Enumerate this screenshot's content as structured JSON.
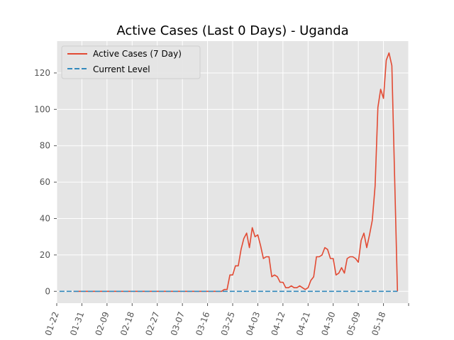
{
  "chart_data": {
    "type": "line",
    "title": "Active Cases (Last 0 Days) - Uganda",
    "xlabel": "",
    "ylabel": "",
    "x_range": [
      "2020-01-22",
      "2020-05-27"
    ],
    "ylim": [
      -6.5,
      137.5
    ],
    "yticks": [
      0,
      20,
      40,
      60,
      80,
      100,
      120
    ],
    "xticks": [
      {
        "date": "2020-01-22",
        "label": "01-22"
      },
      {
        "date": "2020-01-31",
        "label": "01-31"
      },
      {
        "date": "2020-02-09",
        "label": "02-09"
      },
      {
        "date": "2020-02-18",
        "label": "02-18"
      },
      {
        "date": "2020-02-27",
        "label": "02-27"
      },
      {
        "date": "2020-03-07",
        "label": "03-07"
      },
      {
        "date": "2020-03-16",
        "label": "03-16"
      },
      {
        "date": "2020-03-25",
        "label": "03-25"
      },
      {
        "date": "2020-04-03",
        "label": "04-03"
      },
      {
        "date": "2020-04-12",
        "label": "04-12"
      },
      {
        "date": "2020-04-21",
        "label": "04-21"
      },
      {
        "date": "2020-04-30",
        "label": "04-30"
      },
      {
        "date": "2020-05-09",
        "label": "05-09"
      },
      {
        "date": "2020-05-18",
        "label": "05-18"
      },
      {
        "date": "2020-05-27",
        "label": ""
      }
    ],
    "grid": true,
    "legend_position": "top-left",
    "colors": {
      "background": "#e5e5e5",
      "grid": "#ffffff",
      "text": "#555555"
    },
    "series": [
      {
        "name": "Active Cases (7 Day)",
        "color": "#e24a33",
        "style": "solid",
        "points": [
          [
            "2020-01-28",
            0
          ],
          [
            "2020-02-05",
            0
          ],
          [
            "2020-02-15",
            0
          ],
          [
            "2020-02-25",
            0
          ],
          [
            "2020-03-05",
            0
          ],
          [
            "2020-03-15",
            0
          ],
          [
            "2020-03-21",
            0
          ],
          [
            "2020-03-22",
            1
          ],
          [
            "2020-03-23",
            1
          ],
          [
            "2020-03-24",
            9
          ],
          [
            "2020-03-25",
            9
          ],
          [
            "2020-03-26",
            14
          ],
          [
            "2020-03-27",
            14
          ],
          [
            "2020-03-28",
            23
          ],
          [
            "2020-03-29",
            29
          ],
          [
            "2020-03-30",
            32
          ],
          [
            "2020-03-31",
            24
          ],
          [
            "2020-04-01",
            35
          ],
          [
            "2020-04-02",
            30
          ],
          [
            "2020-04-03",
            31
          ],
          [
            "2020-04-04",
            25
          ],
          [
            "2020-04-05",
            18
          ],
          [
            "2020-04-06",
            19
          ],
          [
            "2020-04-07",
            19
          ],
          [
            "2020-04-08",
            8
          ],
          [
            "2020-04-09",
            9
          ],
          [
            "2020-04-10",
            8
          ],
          [
            "2020-04-11",
            5
          ],
          [
            "2020-04-12",
            5
          ],
          [
            "2020-04-13",
            2
          ],
          [
            "2020-04-14",
            2
          ],
          [
            "2020-04-15",
            3
          ],
          [
            "2020-04-16",
            2
          ],
          [
            "2020-04-17",
            2
          ],
          [
            "2020-04-18",
            3
          ],
          [
            "2020-04-19",
            2
          ],
          [
            "2020-04-20",
            1
          ],
          [
            "2020-04-21",
            2
          ],
          [
            "2020-04-22",
            6
          ],
          [
            "2020-04-23",
            8
          ],
          [
            "2020-04-24",
            19
          ],
          [
            "2020-04-25",
            19
          ],
          [
            "2020-04-26",
            20
          ],
          [
            "2020-04-27",
            24
          ],
          [
            "2020-04-28",
            23
          ],
          [
            "2020-04-29",
            18
          ],
          [
            "2020-04-30",
            18
          ],
          [
            "2020-05-01",
            9
          ],
          [
            "2020-05-02",
            10
          ],
          [
            "2020-05-03",
            13
          ],
          [
            "2020-05-04",
            10
          ],
          [
            "2020-05-05",
            18
          ],
          [
            "2020-05-06",
            19
          ],
          [
            "2020-05-07",
            19
          ],
          [
            "2020-05-08",
            18
          ],
          [
            "2020-05-09",
            16
          ],
          [
            "2020-05-10",
            28
          ],
          [
            "2020-05-11",
            32
          ],
          [
            "2020-05-12",
            24
          ],
          [
            "2020-05-13",
            31
          ],
          [
            "2020-05-14",
            39
          ],
          [
            "2020-05-15",
            58
          ],
          [
            "2020-05-16",
            101
          ],
          [
            "2020-05-17",
            111
          ],
          [
            "2020-05-18",
            106
          ],
          [
            "2020-05-19",
            127
          ],
          [
            "2020-05-20",
            131
          ],
          [
            "2020-05-21",
            124
          ],
          [
            "2020-05-23",
            0
          ]
        ]
      },
      {
        "name": "Current Level",
        "color": "#348abd",
        "style": "dashed",
        "points": [
          [
            "2020-01-23",
            0
          ],
          [
            "2020-05-23",
            0
          ]
        ]
      }
    ]
  }
}
